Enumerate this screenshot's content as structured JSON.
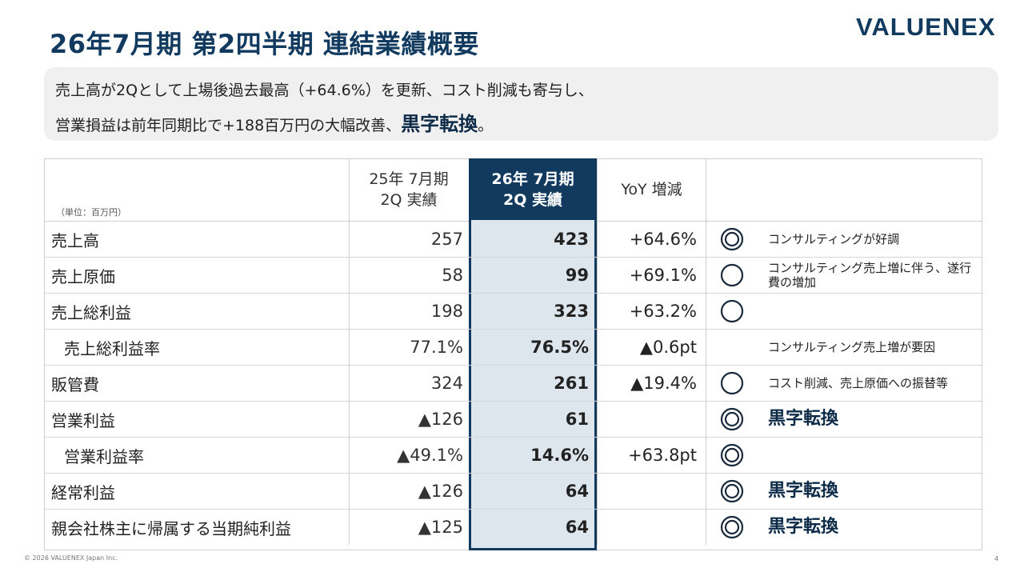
{
  "title": "26年7月期 第2四半期 連結業績概要",
  "logo": "VALUENEX",
  "summary": {
    "line1": "売上高が2Qとして上場後過去最高（+64.6%）を更新、コスト削減も寄与し、",
    "line2_prefix": "営業損益は前年同期比で+188百万円の大幅改善、",
    "line2_emphasis": "黒字転換",
    "line2_suffix": "。"
  },
  "table": {
    "unit": "（単位：百万円）",
    "headers": {
      "prev_line1": "25年 7月期",
      "prev_line2": "2Q 実績",
      "cur_line1": "26年 7月期",
      "cur_line2": "2Q 実績",
      "yoy": "YoY 増減"
    },
    "rows": [
      {
        "label": "売上高",
        "prev": "257",
        "cur": "423",
        "yoy": "+64.6%",
        "mark": "double-circle",
        "note": "コンサルティングが好調"
      },
      {
        "label": "売上原価",
        "prev": "58",
        "cur": "99",
        "yoy": "+69.1%",
        "mark": "circle",
        "note": "コンサルティング売上増に伴う、遂行費の増加"
      },
      {
        "label": "売上総利益",
        "prev": "198",
        "cur": "323",
        "yoy": "+63.2%",
        "mark": "circle",
        "note": ""
      },
      {
        "label": "売上総利益率",
        "prev": "77.1%",
        "cur": "76.5%",
        "yoy": "▲0.6pt",
        "mark": "none",
        "note": "コンサルティング売上増が要因"
      },
      {
        "label": "販管費",
        "prev": "324",
        "cur": "261",
        "yoy": "▲19.4%",
        "mark": "circle",
        "note": "コスト削減、売上原価への振替等"
      },
      {
        "label": "営業利益",
        "prev": "▲126",
        "cur": "61",
        "yoy": "",
        "mark": "double-circle",
        "note": "黒字転換"
      },
      {
        "label": "営業利益率",
        "prev": "▲49.1%",
        "cur": "14.6%",
        "yoy": "+63.8pt",
        "mark": "double-circle",
        "note": ""
      },
      {
        "label": "経常利益",
        "prev": "▲126",
        "cur": "64",
        "yoy": "",
        "mark": "double-circle",
        "note": "黒字転換"
      },
      {
        "label": "親会社株主に帰属する当期純利益",
        "prev": "▲125",
        "cur": "64",
        "yoy": "",
        "mark": "double-circle",
        "note": "黒字転換"
      }
    ]
  },
  "footer": "© 2026 VALUENEX Japan Inc.",
  "page_number": "4",
  "colors": {
    "navy": "#123a5e",
    "highlight": "#dde6ec",
    "summary_bg": "#f0f0f0"
  }
}
